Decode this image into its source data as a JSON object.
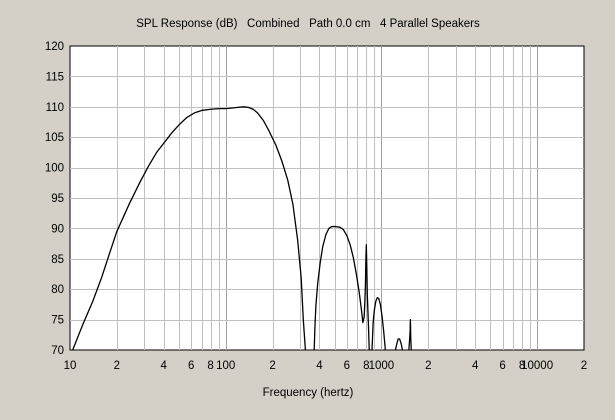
{
  "window": {
    "background": "#d4d0c8"
  },
  "chart_data": {
    "type": "line",
    "title": "SPL Response (dB)   Combined   Path 0.0 cm   4 Parallel Speakers",
    "xlabel": "Frequency (hertz)",
    "ylabel": "",
    "x_scale": "log",
    "xlim": [
      10,
      20000
    ],
    "ylim": [
      70,
      120
    ],
    "y_ticks": [
      70,
      75,
      80,
      85,
      90,
      95,
      100,
      105,
      110,
      115,
      120
    ],
    "x_tick_labels": [
      {
        "value": 10,
        "label": "10"
      },
      {
        "value": 20,
        "label": "2"
      },
      {
        "value": 40,
        "label": "4"
      },
      {
        "value": 60,
        "label": "6"
      },
      {
        "value": 80,
        "label": "8"
      },
      {
        "value": 100,
        "label": "100"
      },
      {
        "value": 200,
        "label": "2"
      },
      {
        "value": 400,
        "label": "4"
      },
      {
        "value": 600,
        "label": "6"
      },
      {
        "value": 800,
        "label": "8"
      },
      {
        "value": 1000,
        "label": "1000"
      },
      {
        "value": 2000,
        "label": "2"
      },
      {
        "value": 4000,
        "label": "4"
      },
      {
        "value": 6000,
        "label": "6"
      },
      {
        "value": 8000,
        "label": "8"
      },
      {
        "value": 10000,
        "label": "10000"
      },
      {
        "value": 20000,
        "label": "2"
      }
    ],
    "grid": true,
    "colors": {
      "line": "#000000",
      "grid": "#c0c0c0",
      "plot_bg": "#ffffff"
    },
    "series": [
      {
        "segments": [
          [
            [
              10.4,
              70
            ],
            [
              12,
              74
            ],
            [
              14,
              78
            ],
            [
              16,
              82
            ],
            [
              18,
              86
            ],
            [
              20,
              89.5
            ],
            [
              24,
              94
            ],
            [
              28,
              97.5
            ],
            [
              32,
              100.3
            ],
            [
              36,
              102.5
            ],
            [
              40,
              104
            ],
            [
              45,
              105.7
            ],
            [
              50,
              107
            ],
            [
              56,
              108.2
            ],
            [
              63,
              109
            ],
            [
              70,
              109.4
            ],
            [
              80,
              109.6
            ],
            [
              90,
              109.7
            ],
            [
              100,
              109.7
            ],
            [
              110,
              109.8
            ],
            [
              120,
              109.9
            ],
            [
              130,
              110
            ],
            [
              140,
              109.9
            ],
            [
              150,
              109.6
            ],
            [
              160,
              109
            ],
            [
              175,
              107.7
            ],
            [
              190,
              106
            ],
            [
              210,
              103.7
            ],
            [
              230,
              101
            ],
            [
              250,
              98
            ],
            [
              270,
              94
            ],
            [
              290,
              88
            ],
            [
              305,
              82
            ],
            [
              315,
              75
            ],
            [
              325,
              70
            ]
          ],
          [
            [
              370,
              70
            ],
            [
              375,
              74.5
            ],
            [
              380,
              77.5
            ],
            [
              390,
              81
            ],
            [
              405,
              84.5
            ],
            [
              420,
              87
            ],
            [
              440,
              89
            ],
            [
              460,
              90
            ],
            [
              480,
              90.3
            ],
            [
              510,
              90.3
            ],
            [
              540,
              90.2
            ],
            [
              570,
              89.8
            ],
            [
              600,
              88.8
            ],
            [
              630,
              87.3
            ],
            [
              660,
              85.2
            ],
            [
              690,
              82.5
            ],
            [
              720,
              79.5
            ],
            [
              745,
              76.5
            ],
            [
              760,
              74.5
            ],
            [
              775,
              75.5
            ],
            [
              783,
              78
            ],
            [
              790,
              81
            ],
            [
              795,
              85
            ],
            [
              800,
              87.3
            ],
            [
              805,
              84
            ],
            [
              812,
              79
            ],
            [
              820,
              76
            ],
            [
              828,
              73
            ],
            [
              835,
              70
            ]
          ],
          [
            [
              870,
              70
            ],
            [
              885,
              74.5
            ],
            [
              900,
              76.5
            ],
            [
              920,
              78
            ],
            [
              940,
              78.6
            ],
            [
              960,
              78.5
            ],
            [
              985,
              77.5
            ],
            [
              1010,
              75.5
            ],
            [
              1035,
              73
            ],
            [
              1060,
              70
            ]
          ],
          [
            [
              1230,
              70
            ],
            [
              1255,
              71
            ],
            [
              1280,
              71.8
            ],
            [
              1310,
              71.8
            ],
            [
              1340,
              71
            ],
            [
              1365,
              70
            ]
          ],
          [
            [
              1500,
              70
            ],
            [
              1515,
              71.5
            ],
            [
              1528,
              73
            ],
            [
              1535,
              75
            ],
            [
              1543,
              72
            ],
            [
              1555,
              70
            ]
          ]
        ]
      }
    ]
  }
}
